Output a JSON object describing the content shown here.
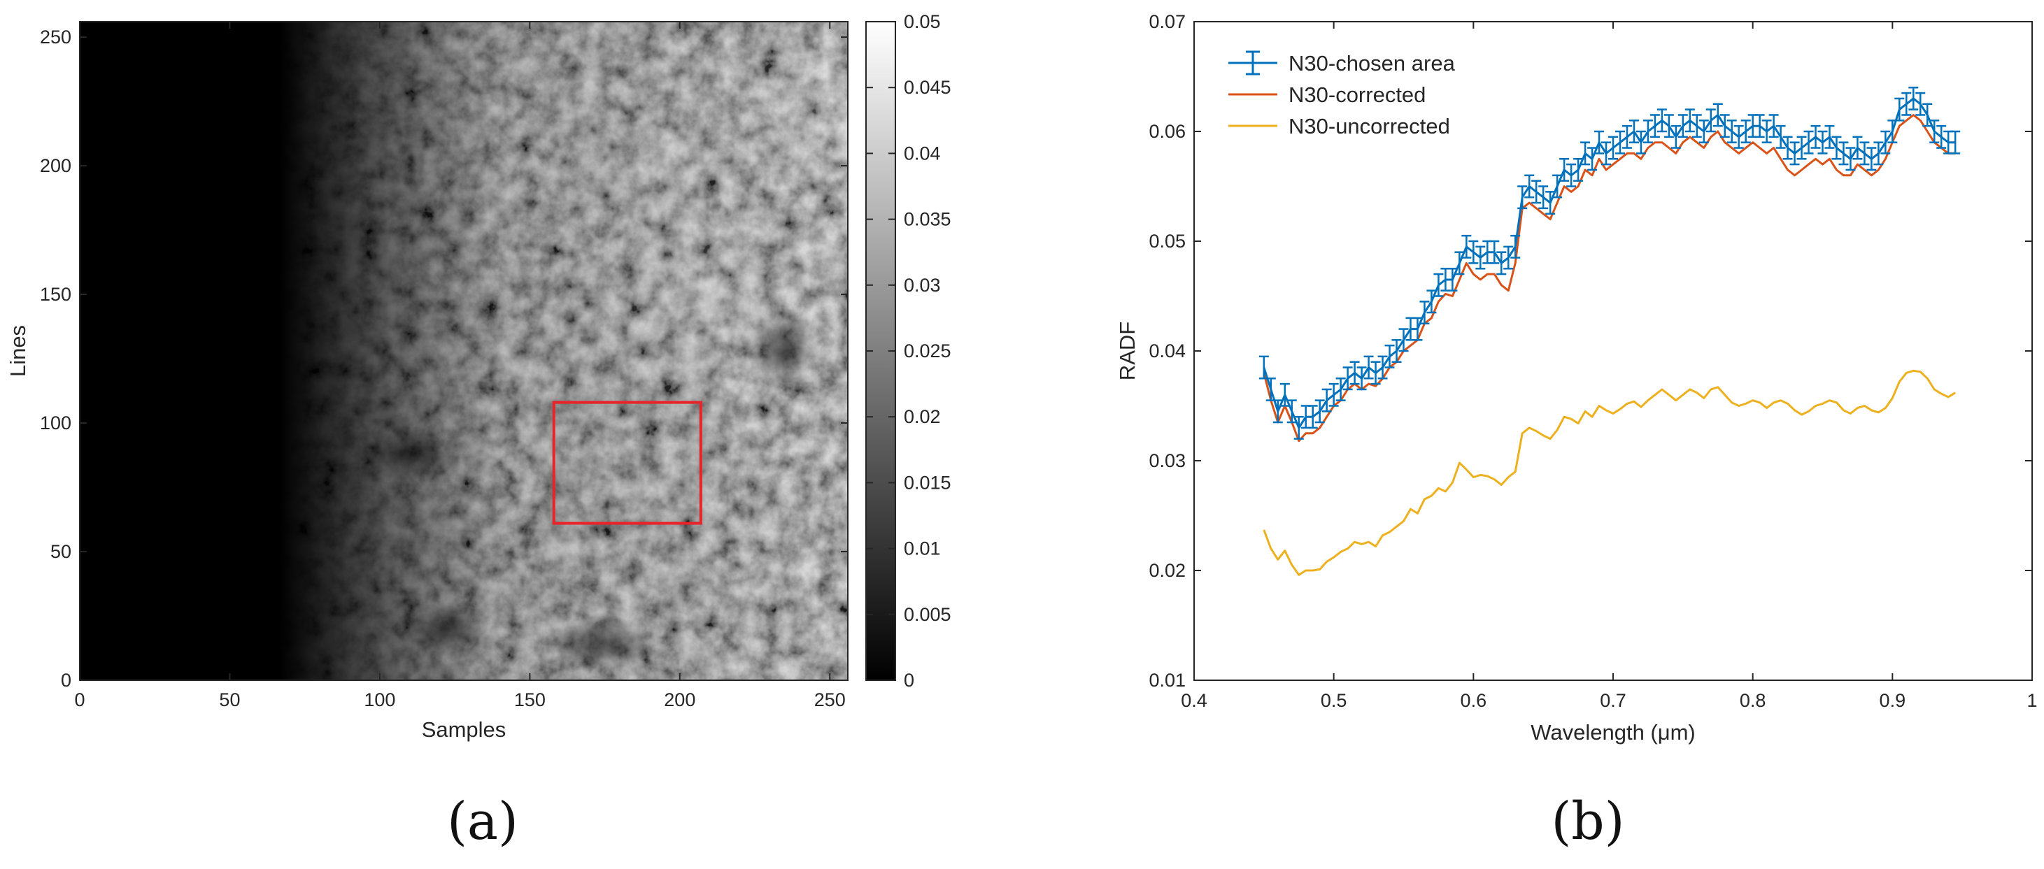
{
  "panels": {
    "a_label": "(a)",
    "b_label": "(b)"
  },
  "chart_data": [
    {
      "type": "heatmap",
      "title": "",
      "xlabel": "Samples",
      "ylabel": "Lines",
      "xlim": [
        0,
        256
      ],
      "ylim": [
        0,
        256
      ],
      "xticks": [
        "0",
        "50",
        "100",
        "150",
        "200",
        "250"
      ],
      "yticks": [
        "0",
        "50",
        "100",
        "150",
        "200",
        "250"
      ],
      "colormap": "gray",
      "colorbar": {
        "range": [
          0,
          0.05
        ],
        "ticks": [
          "0",
          "0.005",
          "0.01",
          "0.015",
          "0.02",
          "0.025",
          "0.03",
          "0.035",
          "0.04",
          "0.045",
          "0.05"
        ]
      },
      "highlight_region": {
        "color": "#e8232a",
        "x_range": [
          158,
          207
        ],
        "y_range": [
          61,
          108
        ]
      }
    },
    {
      "type": "line",
      "title": "",
      "xlabel": "Wavelength (μm)",
      "ylabel": "RADF",
      "xlim": [
        0.4,
        1
      ],
      "ylim": [
        0.01,
        0.07
      ],
      "xticks": [
        "0.4",
        "0.5",
        "0.6",
        "0.7",
        "0.8",
        "0.9",
        "1"
      ],
      "yticks": [
        "0.01",
        "0.02",
        "0.03",
        "0.04",
        "0.05",
        "0.06",
        "0.07"
      ],
      "grid": false,
      "legend": "top-left",
      "series": [
        {
          "name": "N30-chosen area",
          "color": "#0072bd",
          "errorbars": true,
          "x": [
            0.45,
            0.455,
            0.46,
            0.465,
            0.47,
            0.475,
            0.48,
            0.485,
            0.49,
            0.495,
            0.5,
            0.505,
            0.51,
            0.515,
            0.52,
            0.525,
            0.53,
            0.535,
            0.54,
            0.545,
            0.55,
            0.555,
            0.56,
            0.565,
            0.57,
            0.575,
            0.58,
            0.585,
            0.59,
            0.595,
            0.6,
            0.605,
            0.61,
            0.615,
            0.62,
            0.625,
            0.63,
            0.635,
            0.64,
            0.645,
            0.65,
            0.655,
            0.66,
            0.665,
            0.67,
            0.675,
            0.68,
            0.685,
            0.69,
            0.695,
            0.7,
            0.705,
            0.71,
            0.715,
            0.72,
            0.725,
            0.73,
            0.735,
            0.74,
            0.745,
            0.75,
            0.755,
            0.76,
            0.765,
            0.77,
            0.775,
            0.78,
            0.785,
            0.79,
            0.795,
            0.8,
            0.805,
            0.81,
            0.815,
            0.82,
            0.825,
            0.83,
            0.835,
            0.84,
            0.845,
            0.85,
            0.855,
            0.86,
            0.865,
            0.87,
            0.875,
            0.88,
            0.885,
            0.89,
            0.895,
            0.9,
            0.905,
            0.91,
            0.915,
            0.92,
            0.925,
            0.93,
            0.935,
            0.94,
            0.945
          ],
          "y": [
            0.0385,
            0.0365,
            0.0345,
            0.036,
            0.0345,
            0.033,
            0.034,
            0.034,
            0.0345,
            0.0355,
            0.036,
            0.0365,
            0.0375,
            0.038,
            0.0375,
            0.0385,
            0.038,
            0.0385,
            0.0395,
            0.04,
            0.041,
            0.042,
            0.042,
            0.0435,
            0.0445,
            0.046,
            0.0465,
            0.0465,
            0.048,
            0.0495,
            0.049,
            0.0485,
            0.049,
            0.049,
            0.048,
            0.0485,
            0.0495,
            0.054,
            0.055,
            0.0545,
            0.054,
            0.0535,
            0.055,
            0.0565,
            0.056,
            0.0565,
            0.058,
            0.0575,
            0.059,
            0.058,
            0.0585,
            0.059,
            0.0595,
            0.06,
            0.059,
            0.06,
            0.0605,
            0.061,
            0.0605,
            0.0595,
            0.0605,
            0.061,
            0.0605,
            0.06,
            0.061,
            0.0615,
            0.0605,
            0.06,
            0.0595,
            0.06,
            0.0605,
            0.0605,
            0.06,
            0.0605,
            0.0595,
            0.0585,
            0.058,
            0.0585,
            0.059,
            0.0595,
            0.059,
            0.0595,
            0.0585,
            0.058,
            0.0575,
            0.0585,
            0.058,
            0.0575,
            0.058,
            0.059,
            0.06,
            0.062,
            0.0625,
            0.063,
            0.0625,
            0.0615,
            0.06,
            0.0595,
            0.059,
            0.059
          ],
          "err": 0.001
        },
        {
          "name": "N30-corrected",
          "color": "#d95319",
          "x": [
            0.45,
            0.455,
            0.46,
            0.465,
            0.47,
            0.475,
            0.48,
            0.485,
            0.49,
            0.495,
            0.5,
            0.505,
            0.51,
            0.515,
            0.52,
            0.525,
            0.53,
            0.535,
            0.54,
            0.545,
            0.55,
            0.555,
            0.56,
            0.565,
            0.57,
            0.575,
            0.58,
            0.585,
            0.59,
            0.595,
            0.6,
            0.605,
            0.61,
            0.615,
            0.62,
            0.625,
            0.63,
            0.635,
            0.64,
            0.645,
            0.65,
            0.655,
            0.66,
            0.665,
            0.67,
            0.675,
            0.68,
            0.685,
            0.69,
            0.695,
            0.7,
            0.705,
            0.71,
            0.715,
            0.72,
            0.725,
            0.73,
            0.735,
            0.74,
            0.745,
            0.75,
            0.755,
            0.76,
            0.765,
            0.77,
            0.775,
            0.78,
            0.785,
            0.79,
            0.795,
            0.8,
            0.805,
            0.81,
            0.815,
            0.82,
            0.825,
            0.83,
            0.835,
            0.84,
            0.845,
            0.85,
            0.855,
            0.86,
            0.865,
            0.87,
            0.875,
            0.88,
            0.885,
            0.89,
            0.895,
            0.9,
            0.905,
            0.91,
            0.915,
            0.92,
            0.925,
            0.93,
            0.935,
            0.94,
            0.945
          ],
          "y": [
            0.038,
            0.0355,
            0.0335,
            0.035,
            0.0335,
            0.0318,
            0.0325,
            0.0325,
            0.033,
            0.034,
            0.035,
            0.0355,
            0.0365,
            0.037,
            0.0365,
            0.037,
            0.0368,
            0.0375,
            0.0385,
            0.039,
            0.04,
            0.0405,
            0.041,
            0.0425,
            0.043,
            0.0445,
            0.0452,
            0.045,
            0.0465,
            0.048,
            0.047,
            0.0465,
            0.047,
            0.047,
            0.046,
            0.0455,
            0.048,
            0.053,
            0.0535,
            0.053,
            0.0525,
            0.052,
            0.0535,
            0.055,
            0.0545,
            0.055,
            0.0565,
            0.056,
            0.0575,
            0.0565,
            0.057,
            0.0575,
            0.058,
            0.058,
            0.0575,
            0.0585,
            0.059,
            0.059,
            0.0585,
            0.058,
            0.059,
            0.0595,
            0.059,
            0.0585,
            0.0595,
            0.06,
            0.059,
            0.0585,
            0.058,
            0.0585,
            0.059,
            0.0585,
            0.058,
            0.0585,
            0.0575,
            0.0565,
            0.056,
            0.0565,
            0.057,
            0.0575,
            0.057,
            0.0575,
            0.0565,
            0.056,
            0.056,
            0.057,
            0.0565,
            0.056,
            0.0565,
            0.0575,
            0.059,
            0.0605,
            0.061,
            0.0615,
            0.061,
            0.06,
            0.059,
            0.0585,
            0.058,
            0.058
          ]
        },
        {
          "name": "N30-uncorrected",
          "color": "#edb120",
          "x": [
            0.45,
            0.455,
            0.46,
            0.465,
            0.47,
            0.475,
            0.48,
            0.485,
            0.49,
            0.495,
            0.5,
            0.505,
            0.51,
            0.515,
            0.52,
            0.525,
            0.53,
            0.535,
            0.54,
            0.545,
            0.55,
            0.555,
            0.56,
            0.565,
            0.57,
            0.575,
            0.58,
            0.585,
            0.59,
            0.595,
            0.6,
            0.605,
            0.61,
            0.615,
            0.62,
            0.625,
            0.63,
            0.635,
            0.64,
            0.645,
            0.65,
            0.655,
            0.66,
            0.665,
            0.67,
            0.675,
            0.68,
            0.685,
            0.69,
            0.695,
            0.7,
            0.705,
            0.71,
            0.715,
            0.72,
            0.725,
            0.73,
            0.735,
            0.74,
            0.745,
            0.75,
            0.755,
            0.76,
            0.765,
            0.77,
            0.775,
            0.78,
            0.785,
            0.79,
            0.795,
            0.8,
            0.805,
            0.81,
            0.815,
            0.82,
            0.825,
            0.83,
            0.835,
            0.84,
            0.845,
            0.85,
            0.855,
            0.86,
            0.865,
            0.87,
            0.875,
            0.88,
            0.885,
            0.89,
            0.895,
            0.9,
            0.905,
            0.91,
            0.915,
            0.92,
            0.925,
            0.93,
            0.935,
            0.94,
            0.945
          ],
          "y": [
            0.0237,
            0.022,
            0.021,
            0.0218,
            0.0205,
            0.0196,
            0.02,
            0.02,
            0.0201,
            0.0208,
            0.0212,
            0.0217,
            0.022,
            0.0226,
            0.0224,
            0.0226,
            0.0222,
            0.0232,
            0.0235,
            0.024,
            0.0245,
            0.0256,
            0.0252,
            0.0265,
            0.0268,
            0.0275,
            0.0272,
            0.028,
            0.0298,
            0.0292,
            0.0285,
            0.0287,
            0.0286,
            0.0283,
            0.0278,
            0.0285,
            0.029,
            0.0325,
            0.033,
            0.0327,
            0.0323,
            0.032,
            0.0328,
            0.034,
            0.0338,
            0.0334,
            0.0345,
            0.034,
            0.035,
            0.0346,
            0.0343,
            0.0347,
            0.0352,
            0.0354,
            0.0349,
            0.0355,
            0.036,
            0.0365,
            0.036,
            0.0355,
            0.036,
            0.0365,
            0.0362,
            0.0357,
            0.0365,
            0.0367,
            0.036,
            0.0353,
            0.035,
            0.0352,
            0.0355,
            0.0353,
            0.0348,
            0.0353,
            0.0355,
            0.0352,
            0.0346,
            0.0342,
            0.0345,
            0.035,
            0.0352,
            0.0355,
            0.0353,
            0.0346,
            0.0343,
            0.0348,
            0.035,
            0.0346,
            0.0344,
            0.0348,
            0.0357,
            0.0372,
            0.038,
            0.0382,
            0.0381,
            0.0375,
            0.0365,
            0.0361,
            0.0358,
            0.0362
          ]
        }
      ]
    }
  ]
}
